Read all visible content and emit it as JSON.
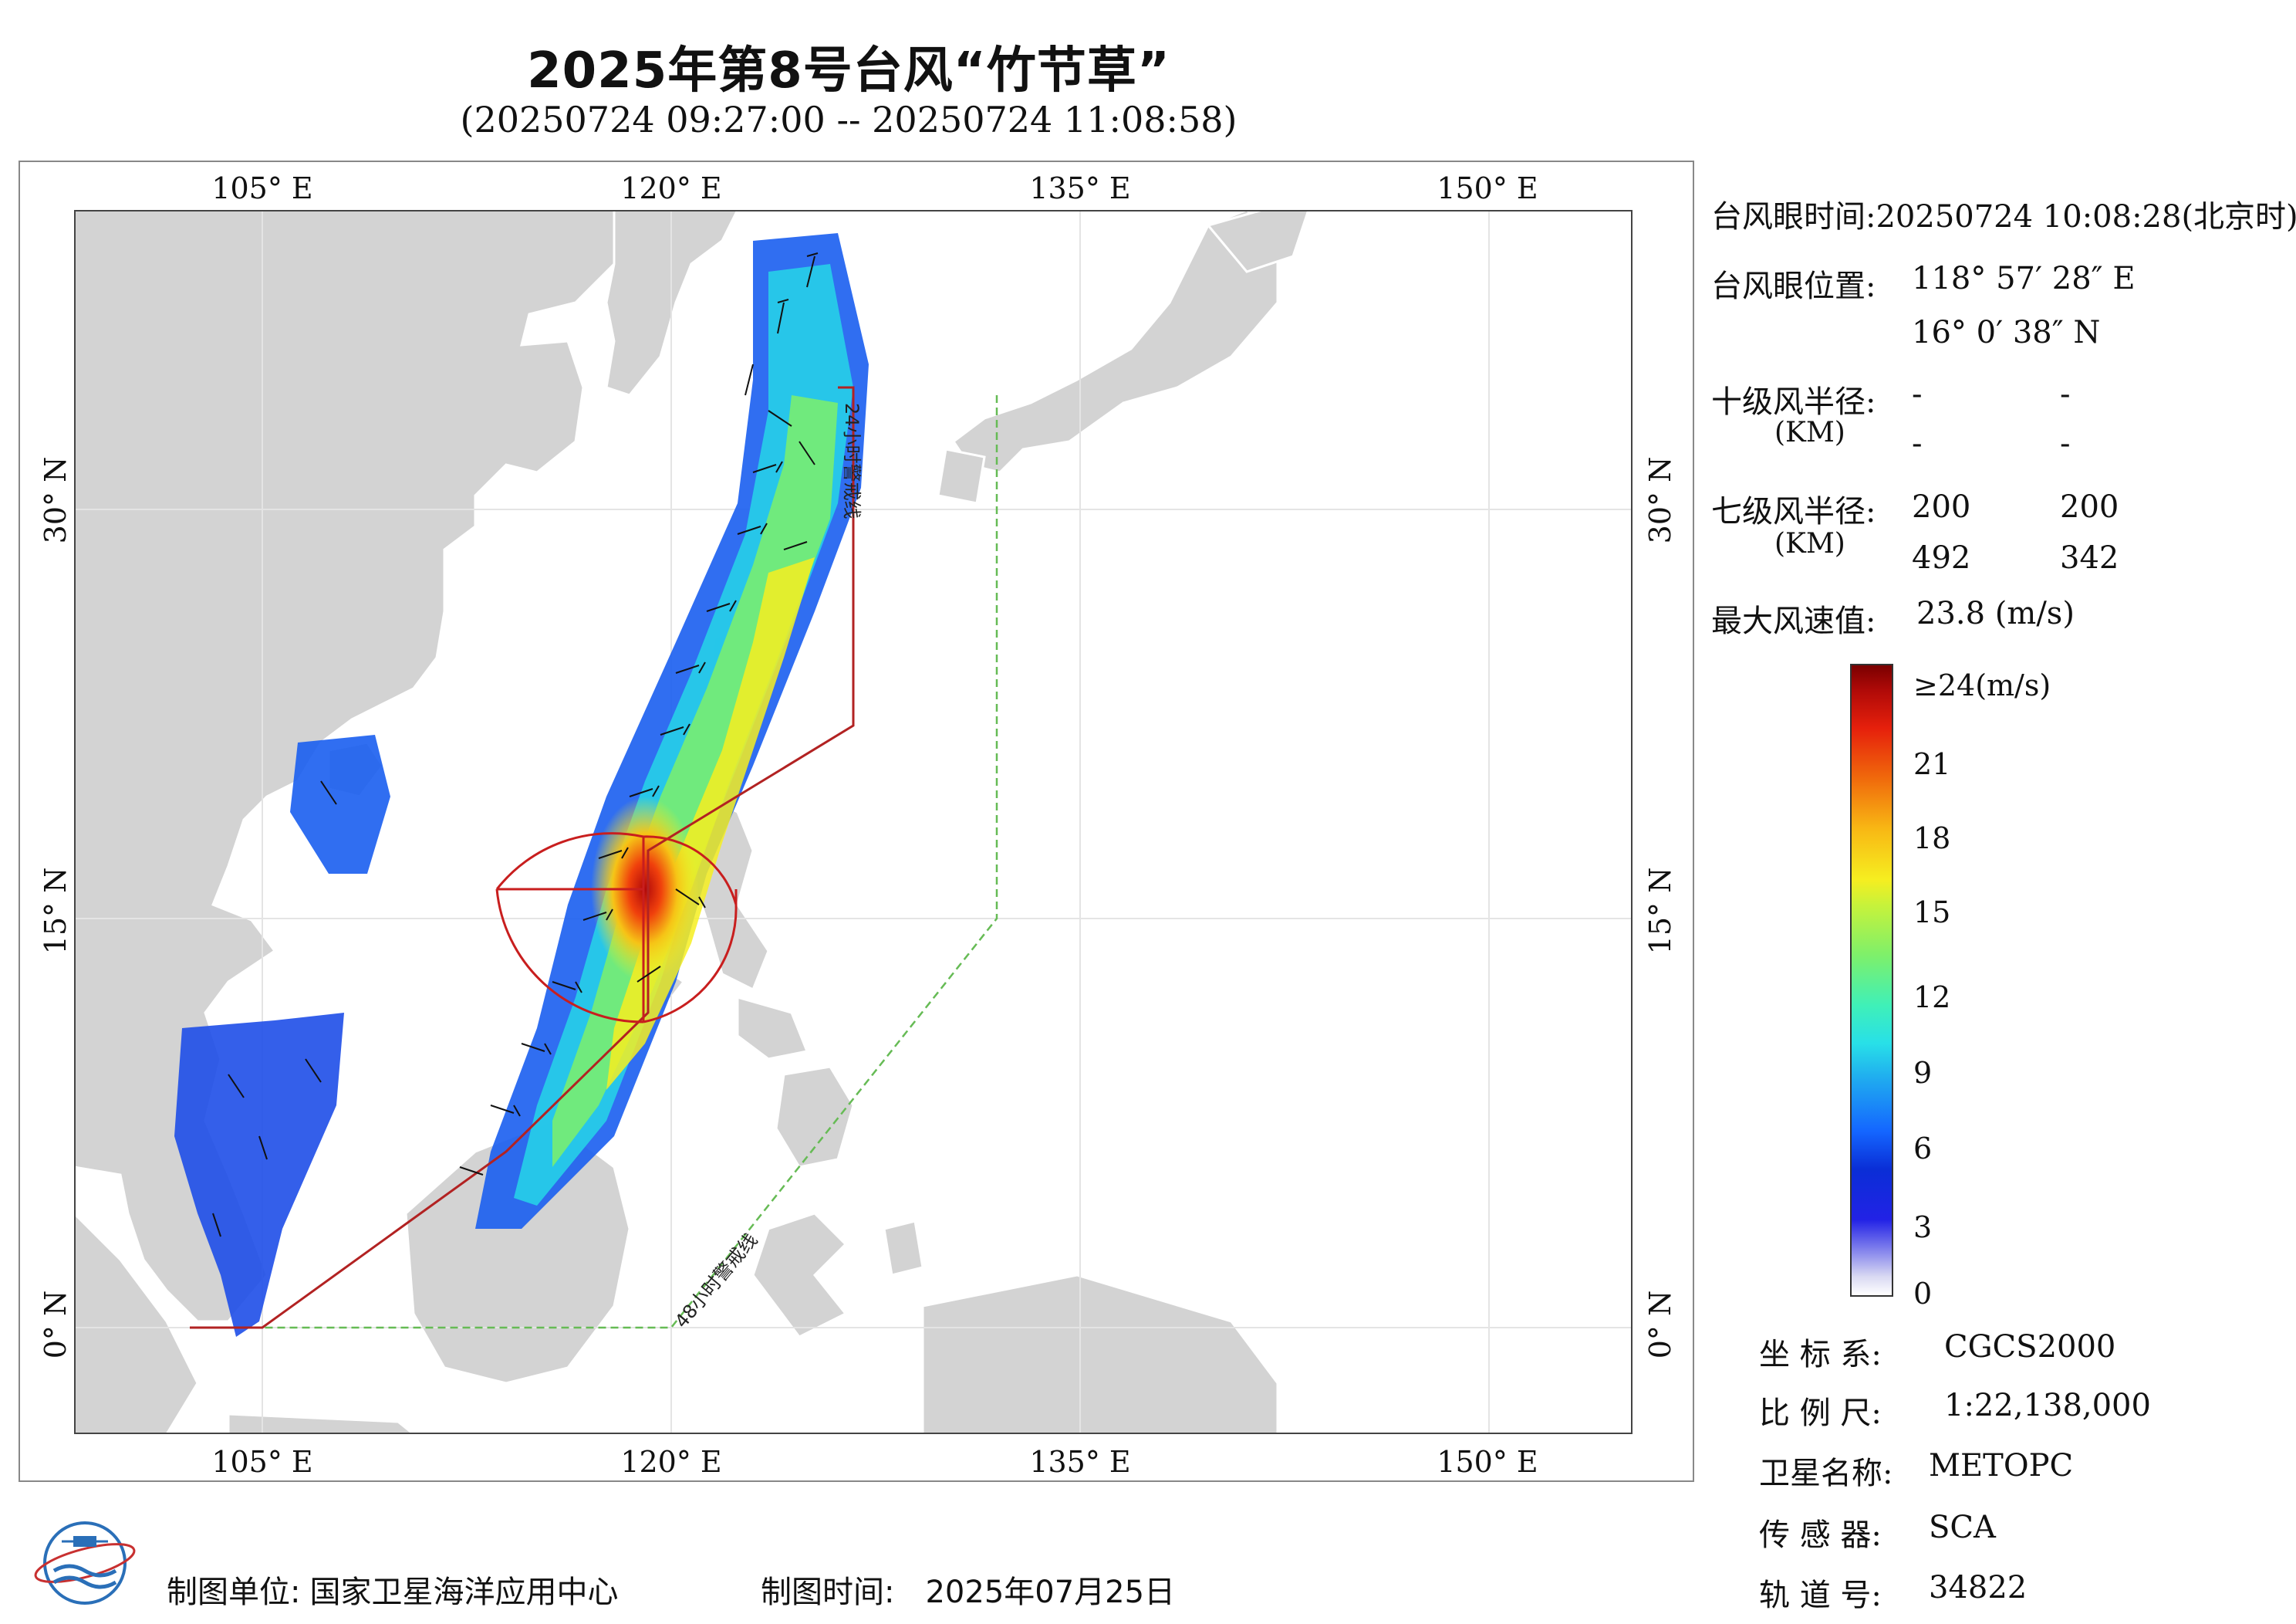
{
  "header": {
    "title": "2025年第8号台风“竹节草”",
    "subtitle": "(20250724 09:27:00 -- 20250724 11:08:58)"
  },
  "map": {
    "lon_labels": [
      "105° E",
      "120° E",
      "135° E",
      "150° E"
    ],
    "lat_labels": [
      "30° N",
      "15° N",
      "0° N"
    ],
    "line_24h": "24小时警戒线",
    "line_48h": "48小时警戒线",
    "colors": {
      "land": "#d3d3d3",
      "sea": "#ffffff",
      "line_24h": "#b22222",
      "line_48h": "#66bb55",
      "typhoon_sector": "#c81e1e"
    }
  },
  "info": {
    "eye_time_label": "台风眼时间:",
    "eye_time_value": "20250724 10:08:28(北京时)",
    "eye_pos_label": "台风眼位置:",
    "eye_lon": "118° 57′ 28″ E",
    "eye_lat": "16° 0′ 38″ N",
    "r10_label": "十级风半径:",
    "r10_unit": "(KM)",
    "r10_values": [
      "-",
      "-",
      "-",
      "-"
    ],
    "r7_label": "七级风半径:",
    "r7_unit": "(KM)",
    "r7_values": [
      "200",
      "200",
      "492",
      "342"
    ],
    "max_wind_label": "最大风速值:",
    "max_wind_value": "23.8  (m/s)"
  },
  "colorbar": {
    "ticks": [
      "≥24(m/s)",
      "21",
      "18",
      "15",
      "12",
      "9",
      "6",
      "3",
      "0"
    ]
  },
  "meta": {
    "coord_label": "坐 标 系:",
    "coord_value": "CGCS2000",
    "scale_label": "比 例 尺:",
    "scale_value": "1:22,138,000",
    "sat_label": "卫星名称:",
    "sat_value": "METOPC",
    "sensor_label": "传 感 器:",
    "sensor_value": "SCA",
    "orbit_label": "轨 道 号:",
    "orbit_value": "34822"
  },
  "footer": {
    "unit_label": "制图单位:",
    "unit_value": "国家卫星海洋应用中心",
    "time_label": "制图时间:",
    "time_value": "2025年07月25日"
  }
}
